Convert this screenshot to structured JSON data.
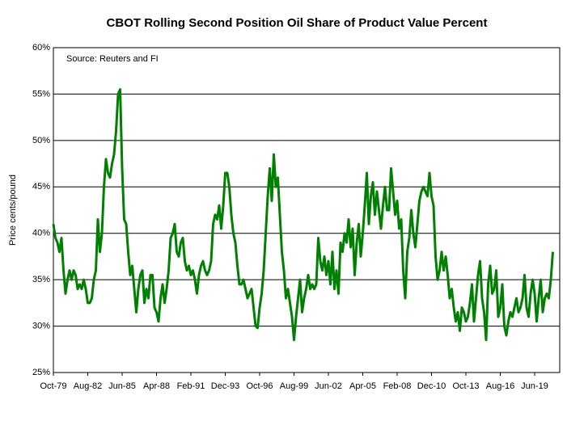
{
  "chart_data": {
    "type": "line",
    "title": "CBOT Rolling Second Position Oil Share of Product Value Percent",
    "ylabel": "Price cents/pound",
    "annotation": "Source: Reuters and FI",
    "color": "#008000",
    "grid": true,
    "ylim": [
      25,
      60
    ],
    "yticks": [
      {
        "value": 25,
        "label": "25%"
      },
      {
        "value": 30,
        "label": "30%"
      },
      {
        "value": 35,
        "label": "35%"
      },
      {
        "value": 40,
        "label": "40%"
      },
      {
        "value": 45,
        "label": "45%"
      },
      {
        "value": 50,
        "label": "50%"
      },
      {
        "value": 55,
        "label": "55%"
      },
      {
        "value": 60,
        "label": "60%"
      }
    ],
    "categories": [
      "Oct-79",
      null,
      null,
      null,
      null,
      null,
      null,
      null,
      null,
      null,
      null,
      null,
      null,
      null,
      null,
      null,
      null,
      "Aug-82",
      null,
      null,
      null,
      null,
      null,
      null,
      null,
      null,
      null,
      null,
      null,
      null,
      null,
      null,
      null,
      null,
      "Jun-85",
      null,
      null,
      null,
      null,
      null,
      null,
      null,
      null,
      null,
      null,
      null,
      null,
      null,
      null,
      null,
      null,
      "Apr-88",
      null,
      null,
      null,
      null,
      null,
      null,
      null,
      null,
      null,
      null,
      null,
      null,
      null,
      null,
      null,
      null,
      "Feb-91",
      null,
      null,
      null,
      null,
      null,
      null,
      null,
      null,
      null,
      null,
      null,
      null,
      null,
      null,
      null,
      null,
      "Dec-93",
      null,
      null,
      null,
      null,
      null,
      null,
      null,
      null,
      null,
      null,
      null,
      null,
      null,
      null,
      null,
      null,
      "Oct-96",
      null,
      null,
      null,
      null,
      null,
      null,
      null,
      null,
      null,
      null,
      null,
      null,
      null,
      null,
      null,
      null,
      "Aug-99",
      null,
      null,
      null,
      null,
      null,
      null,
      null,
      null,
      null,
      null,
      null,
      null,
      null,
      null,
      null,
      null,
      "Jun-02",
      null,
      null,
      null,
      null,
      null,
      null,
      null,
      null,
      null,
      null,
      null,
      null,
      null,
      null,
      null,
      null,
      "Apr-05",
      null,
      null,
      null,
      null,
      null,
      null,
      null,
      null,
      null,
      null,
      null,
      null,
      null,
      null,
      null,
      null,
      "Feb-08",
      null,
      null,
      null,
      null,
      null,
      null,
      null,
      null,
      null,
      null,
      null,
      null,
      null,
      null,
      null,
      null,
      "Dec-10",
      null,
      null,
      null,
      null,
      null,
      null,
      null,
      null,
      null,
      null,
      null,
      null,
      null,
      null,
      null,
      null,
      "Oct-13",
      null,
      null,
      null,
      null,
      null,
      null,
      null,
      null,
      null,
      null,
      null,
      null,
      null,
      null,
      null,
      null,
      "Aug-16",
      null,
      null,
      null,
      null,
      null,
      null,
      null,
      null,
      null,
      null,
      null,
      null,
      null,
      null,
      null,
      null,
      "Jun-19",
      null,
      null,
      null,
      null,
      null,
      null,
      null,
      null,
      null
    ],
    "values": [
      41,
      39.5,
      39,
      38,
      39.5,
      36,
      33.5,
      35,
      36,
      35,
      36,
      35.5,
      34,
      34.5,
      34,
      35,
      34,
      32.5,
      32.5,
      33,
      35,
      36,
      41.5,
      38,
      40,
      45,
      48,
      46.5,
      46,
      47.5,
      48.5,
      51,
      55,
      55.5,
      47,
      41.5,
      41,
      38,
      35.5,
      36.5,
      34,
      31.5,
      34,
      35.5,
      36,
      32.5,
      34,
      33,
      35.5,
      35.5,
      32,
      31.5,
      30.5,
      33,
      34.5,
      32.5,
      34,
      36,
      39.5,
      40,
      41,
      38,
      37.5,
      39,
      39.5,
      37,
      36,
      36.5,
      35.5,
      36,
      35,
      33.5,
      35.5,
      36.5,
      37,
      36,
      35.5,
      36,
      37,
      41,
      42,
      41.5,
      43,
      40.5,
      43,
      46.5,
      46.5,
      45,
      42,
      40,
      39,
      36.5,
      34.5,
      34.5,
      35,
      34,
      33,
      33.5,
      34,
      32,
      30,
      29.8,
      32,
      33.5,
      36,
      40,
      44,
      47,
      43.5,
      48.5,
      45,
      46,
      42,
      38,
      36,
      33,
      34,
      32.5,
      31,
      28.5,
      31,
      33,
      35,
      31.5,
      33,
      34,
      35.5,
      34,
      34.5,
      34,
      34.5,
      39.5,
      37,
      36,
      37.5,
      35.5,
      37,
      34.5,
      38,
      34,
      36,
      33.5,
      39,
      38,
      40,
      39,
      41.5,
      38.5,
      40.5,
      35.5,
      39,
      41,
      37.5,
      40,
      43,
      46.5,
      41,
      44,
      45.5,
      42,
      44.5,
      42.5,
      40.5,
      43,
      45,
      42.5,
      42.5,
      47,
      44.5,
      42,
      43.5,
      40.5,
      41.5,
      36,
      33,
      38,
      39.5,
      42.5,
      40,
      38.5,
      41,
      43.5,
      44.5,
      45,
      44.5,
      44,
      46.5,
      44,
      43,
      37.5,
      35,
      36,
      38,
      36,
      37.5,
      35.5,
      33,
      34,
      32,
      30.5,
      31.5,
      29.5,
      32,
      31.5,
      30.5,
      31,
      32.5,
      34.5,
      30.5,
      33,
      35.5,
      37,
      33,
      31.5,
      28.5,
      34.5,
      36.5,
      33.5,
      34,
      36,
      31,
      32,
      34.5,
      30,
      29,
      30.5,
      31.5,
      31,
      32,
      33,
      31.5,
      32,
      33,
      35.5,
      32,
      31,
      33.5,
      35,
      33.5,
      30.5,
      33,
      35,
      31.5,
      33,
      33.5,
      33,
      35,
      38
    ]
  }
}
